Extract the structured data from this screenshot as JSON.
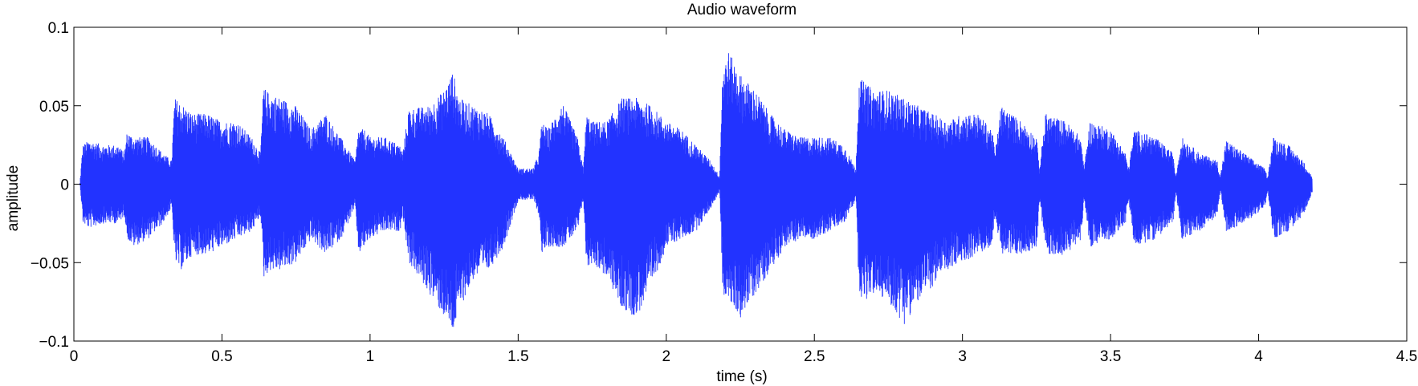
{
  "chart_data": {
    "type": "line",
    "title": "Audio waveform",
    "xlabel": "time (s)",
    "ylabel": "amplitude",
    "xlim": [
      0,
      4.5
    ],
    "ylim": [
      -0.1,
      0.1
    ],
    "xticks": [
      0,
      0.5,
      1,
      1.5,
      2,
      2.5,
      3,
      3.5,
      4,
      4.5
    ],
    "xtick_labels": [
      "0",
      "0.5",
      "1",
      "1.5",
      "2",
      "2.5",
      "3",
      "3.5",
      "4",
      "4.5"
    ],
    "yticks": [
      0.1,
      0.05,
      0,
      -0.05,
      -0.1
    ],
    "ytick_labels": [
      "0.1",
      "0.05",
      "0",
      "−0.05",
      "−0.1"
    ],
    "grid": false,
    "series": [
      {
        "color": "#2233ff",
        "envelope": {
          "t": [
            0.02,
            0.03,
            0.05,
            0.1,
            0.15,
            0.17,
            0.18,
            0.2,
            0.25,
            0.3,
            0.33,
            0.34,
            0.36,
            0.4,
            0.45,
            0.5,
            0.55,
            0.6,
            0.63,
            0.64,
            0.66,
            0.7,
            0.75,
            0.8,
            0.85,
            0.9,
            0.95,
            0.96,
            0.98,
            1.0,
            1.05,
            1.1,
            1.11,
            1.13,
            1.2,
            1.25,
            1.28,
            1.3,
            1.35,
            1.4,
            1.45,
            1.5,
            1.55,
            1.57,
            1.58,
            1.6,
            1.65,
            1.7,
            1.72,
            1.73,
            1.75,
            1.8,
            1.85,
            1.9,
            1.95,
            2.0,
            2.05,
            2.1,
            2.15,
            2.18,
            2.19,
            2.21,
            2.25,
            2.3,
            2.35,
            2.4,
            2.45,
            2.5,
            2.55,
            2.6,
            2.64,
            2.65,
            2.67,
            2.7,
            2.75,
            2.8,
            2.85,
            2.9,
            2.95,
            3.0,
            3.05,
            3.1,
            3.11,
            3.13,
            3.2,
            3.25,
            3.26,
            3.28,
            3.35,
            3.4,
            3.41,
            3.43,
            3.5,
            3.55,
            3.56,
            3.58,
            3.65,
            3.71,
            3.72,
            3.74,
            3.8,
            3.86,
            3.87,
            3.89,
            3.95,
            4.02,
            4.03,
            4.05,
            4.1,
            4.15,
            4.18
          ],
          "upper": [
            0.0,
            0.025,
            0.028,
            0.025,
            0.025,
            0.02,
            0.034,
            0.03,
            0.03,
            0.02,
            0.015,
            0.055,
            0.052,
            0.045,
            0.045,
            0.04,
            0.04,
            0.03,
            0.02,
            0.062,
            0.058,
            0.055,
            0.05,
            0.035,
            0.045,
            0.03,
            0.015,
            0.035,
            0.035,
            0.03,
            0.03,
            0.025,
            0.02,
            0.048,
            0.05,
            0.06,
            0.072,
            0.055,
            0.05,
            0.045,
            0.03,
            0.01,
            0.01,
            0.02,
            0.04,
            0.035,
            0.052,
            0.03,
            0.01,
            0.045,
            0.04,
            0.04,
            0.055,
            0.055,
            0.05,
            0.04,
            0.035,
            0.025,
            0.015,
            0.005,
            0.075,
            0.085,
            0.07,
            0.06,
            0.045,
            0.035,
            0.03,
            0.03,
            0.03,
            0.025,
            0.01,
            0.068,
            0.065,
            0.06,
            0.06,
            0.055,
            0.05,
            0.045,
            0.04,
            0.045,
            0.045,
            0.035,
            0.02,
            0.05,
            0.04,
            0.03,
            0.01,
            0.045,
            0.04,
            0.03,
            0.01,
            0.04,
            0.035,
            0.02,
            0.01,
            0.035,
            0.03,
            0.02,
            0.005,
            0.03,
            0.02,
            0.015,
            0.005,
            0.028,
            0.02,
            0.01,
            0.005,
            0.03,
            0.025,
            0.015,
            0.005
          ],
          "lower": [
            0.0,
            -0.025,
            -0.028,
            -0.025,
            -0.025,
            -0.02,
            -0.035,
            -0.04,
            -0.035,
            -0.025,
            -0.015,
            -0.05,
            -0.055,
            -0.045,
            -0.045,
            -0.04,
            -0.035,
            -0.03,
            -0.02,
            -0.06,
            -0.055,
            -0.055,
            -0.05,
            -0.035,
            -0.045,
            -0.035,
            -0.015,
            -0.045,
            -0.04,
            -0.035,
            -0.03,
            -0.03,
            -0.02,
            -0.05,
            -0.07,
            -0.085,
            -0.095,
            -0.08,
            -0.06,
            -0.055,
            -0.04,
            -0.01,
            -0.01,
            -0.02,
            -0.045,
            -0.04,
            -0.04,
            -0.03,
            -0.01,
            -0.055,
            -0.05,
            -0.06,
            -0.08,
            -0.085,
            -0.065,
            -0.04,
            -0.035,
            -0.03,
            -0.015,
            -0.005,
            -0.07,
            -0.075,
            -0.085,
            -0.07,
            -0.055,
            -0.04,
            -0.035,
            -0.035,
            -0.03,
            -0.025,
            -0.01,
            -0.07,
            -0.075,
            -0.07,
            -0.075,
            -0.09,
            -0.075,
            -0.065,
            -0.055,
            -0.05,
            -0.045,
            -0.04,
            -0.02,
            -0.045,
            -0.045,
            -0.04,
            -0.01,
            -0.045,
            -0.045,
            -0.035,
            -0.01,
            -0.04,
            -0.035,
            -0.025,
            -0.01,
            -0.04,
            -0.035,
            -0.025,
            -0.005,
            -0.035,
            -0.03,
            -0.02,
            -0.005,
            -0.03,
            -0.025,
            -0.015,
            -0.005,
            -0.035,
            -0.03,
            -0.02,
            -0.005
          ]
        }
      }
    ]
  }
}
